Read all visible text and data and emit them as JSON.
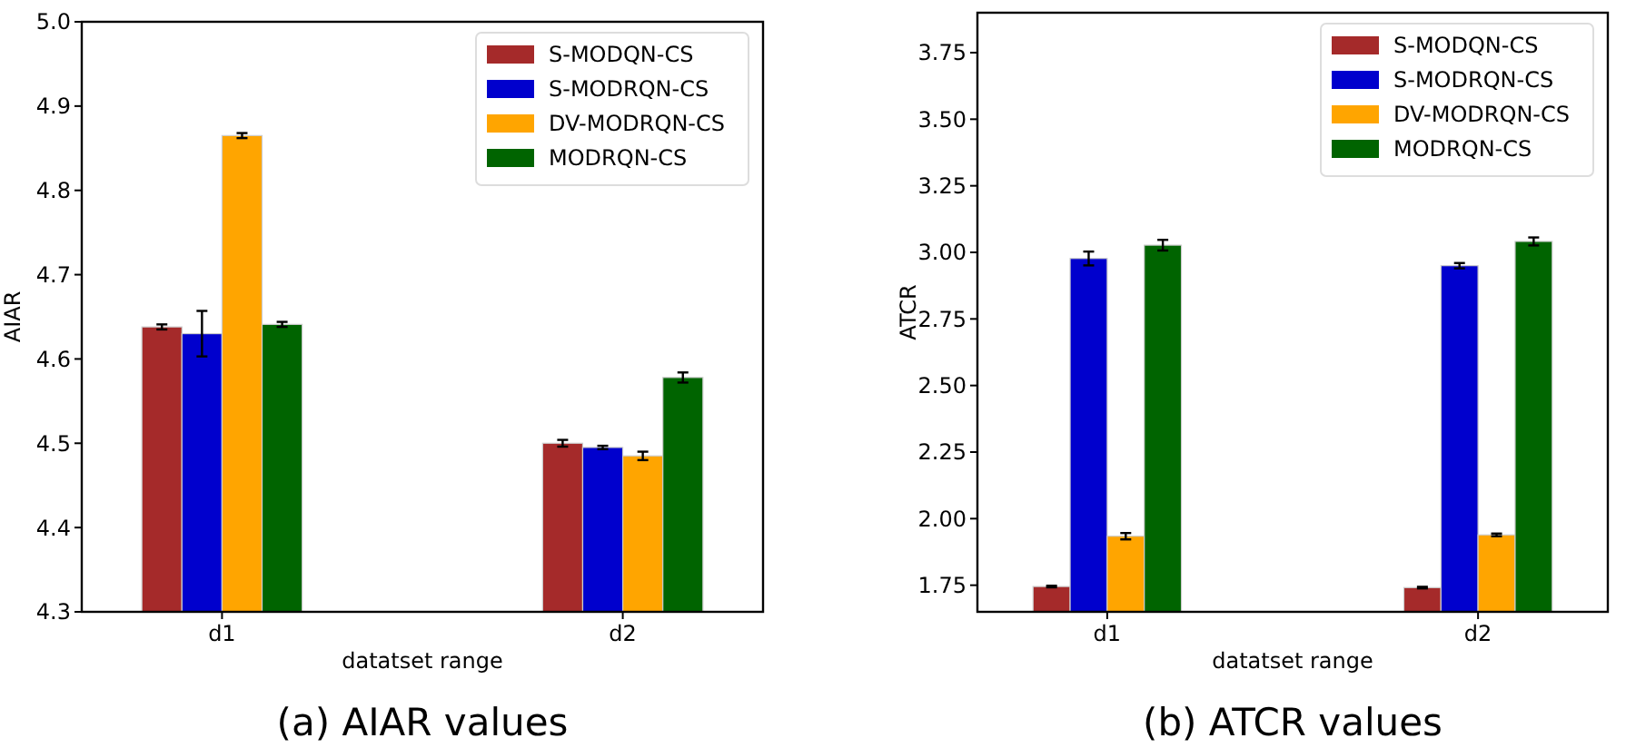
{
  "chart_data": [
    {
      "type": "bar",
      "title": "(a) AIAR values",
      "xlabel": "datatset range",
      "ylabel": "AIAR",
      "categories": [
        "d1",
        "d2"
      ],
      "ylim": [
        4.3,
        5.0
      ],
      "yticks": [
        {
          "value": 4.3,
          "label": "4.3"
        },
        {
          "value": 4.4,
          "label": "4.4"
        },
        {
          "value": 4.5,
          "label": "4.5"
        },
        {
          "value": 4.6,
          "label": "4.6"
        },
        {
          "value": 4.7,
          "label": "4.7"
        },
        {
          "value": 4.8,
          "label": "4.8"
        },
        {
          "value": 4.9,
          "label": "4.9"
        },
        {
          "value": 5.0,
          "label": "5.0"
        }
      ],
      "legend": "top right",
      "series": [
        {
          "name": "S-MODQN-CS",
          "color": "#a52a2a",
          "values": [
            4.638,
            4.5
          ],
          "errors": [
            0.003,
            0.004
          ]
        },
        {
          "name": "S-MODRQN-CS",
          "color": "#0000cd",
          "values": [
            4.63,
            4.495
          ],
          "errors": [
            0.027,
            0.002
          ]
        },
        {
          "name": "DV-MODRQN-CS",
          "color": "#ffa500",
          "values": [
            4.865,
            4.485
          ],
          "errors": [
            0.003,
            0.005
          ]
        },
        {
          "name": "MODRQN-CS",
          "color": "#006400",
          "values": [
            4.641,
            4.578
          ],
          "errors": [
            0.003,
            0.006
          ]
        }
      ]
    },
    {
      "type": "bar",
      "title": "(b) ATCR values",
      "xlabel": "datatset range",
      "ylabel": "ATCR",
      "categories": [
        "d1",
        "d2"
      ],
      "ylim": [
        1.65,
        3.9
      ],
      "yticks": [
        {
          "value": 1.75,
          "label": "1.75"
        },
        {
          "value": 2.0,
          "label": "2.00"
        },
        {
          "value": 2.25,
          "label": "2.25"
        },
        {
          "value": 2.5,
          "label": "2.50"
        },
        {
          "value": 2.75,
          "label": "2.75"
        },
        {
          "value": 3.0,
          "label": "3.00"
        },
        {
          "value": 3.25,
          "label": "3.25"
        },
        {
          "value": 3.5,
          "label": "3.50"
        },
        {
          "value": 3.75,
          "label": "3.75"
        }
      ],
      "legend": "top right",
      "series": [
        {
          "name": "S-MODQN-CS",
          "color": "#a52a2a",
          "values": [
            1.745,
            1.741
          ],
          "errors": [
            0.003,
            0.003
          ]
        },
        {
          "name": "S-MODRQN-CS",
          "color": "#0000cd",
          "values": [
            2.977,
            2.95
          ],
          "errors": [
            0.026,
            0.01
          ]
        },
        {
          "name": "DV-MODRQN-CS",
          "color": "#ffa500",
          "values": [
            1.934,
            1.939
          ],
          "errors": [
            0.012,
            0.005
          ]
        },
        {
          "name": "MODRQN-CS",
          "color": "#006400",
          "values": [
            3.027,
            3.041
          ],
          "errors": [
            0.02,
            0.015
          ]
        }
      ]
    }
  ]
}
